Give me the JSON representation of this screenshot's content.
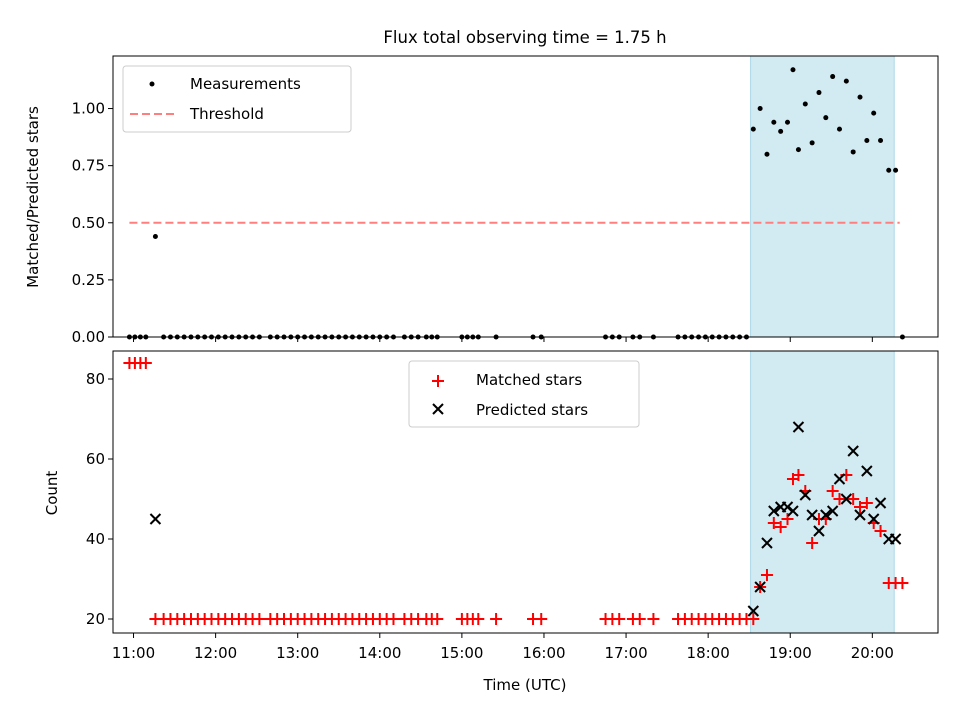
{
  "chart_data": {
    "title": "Flux total observing time = 1.75 h",
    "xlabel": "Time (UTC)",
    "x_ticks": [
      "11:00",
      "12:00",
      "13:00",
      "14:00",
      "15:00",
      "16:00",
      "17:00",
      "18:00",
      "19:00",
      "20:00"
    ],
    "x_range": [
      "10:45",
      "20:48"
    ],
    "highlight_span": {
      "start": "18:31",
      "end": "20:16",
      "color": "#add8e6"
    },
    "panels": [
      {
        "type": "scatter",
        "ylabel": "Matched/Predicted stars",
        "ylim": [
          0,
          1.23
        ],
        "y_ticks": [
          "0.00",
          "0.25",
          "0.50",
          "0.75",
          "1.00"
        ],
        "legend": {
          "placement": "top-left",
          "entries": [
            "Measurements",
            "Threshold"
          ]
        },
        "threshold": {
          "name": "Threshold",
          "y": 0.5,
          "x_start": "10:57",
          "x_end": "20:20",
          "color": "#ff7f7f",
          "style": "dashed"
        },
        "series": [
          {
            "name": "Measurements",
            "marker": "dot",
            "color": "#000000",
            "points": [
              [
                "10:57",
                0
              ],
              [
                "11:01",
                0
              ],
              [
                "11:05",
                0
              ],
              [
                "11:09",
                0
              ],
              [
                "11:16",
                0.44
              ],
              [
                "11:22",
                0
              ],
              [
                "11:27",
                0
              ],
              [
                "11:32",
                0
              ],
              [
                "11:37",
                0
              ],
              [
                "11:42",
                0
              ],
              [
                "11:47",
                0
              ],
              [
                "11:52",
                0
              ],
              [
                "11:57",
                0
              ],
              [
                "12:02",
                0
              ],
              [
                "12:07",
                0
              ],
              [
                "12:12",
                0
              ],
              [
                "12:17",
                0
              ],
              [
                "12:22",
                0
              ],
              [
                "12:27",
                0
              ],
              [
                "12:32",
                0
              ],
              [
                "12:40",
                0
              ],
              [
                "12:45",
                0
              ],
              [
                "12:50",
                0
              ],
              [
                "12:55",
                0
              ],
              [
                "13:00",
                0
              ],
              [
                "13:05",
                0
              ],
              [
                "13:10",
                0
              ],
              [
                "13:15",
                0
              ],
              [
                "13:20",
                0
              ],
              [
                "13:25",
                0
              ],
              [
                "13:30",
                0
              ],
              [
                "13:35",
                0
              ],
              [
                "13:40",
                0
              ],
              [
                "13:45",
                0
              ],
              [
                "13:50",
                0
              ],
              [
                "13:55",
                0
              ],
              [
                "14:00",
                0
              ],
              [
                "14:05",
                0
              ],
              [
                "14:10",
                0
              ],
              [
                "14:18",
                0
              ],
              [
                "14:23",
                0
              ],
              [
                "14:28",
                0
              ],
              [
                "14:34",
                0
              ],
              [
                "14:38",
                0
              ],
              [
                "14:42",
                0
              ],
              [
                "15:00",
                0
              ],
              [
                "15:04",
                0
              ],
              [
                "15:08",
                0
              ],
              [
                "15:12",
                0
              ],
              [
                "15:25",
                0
              ],
              [
                "15:52",
                0
              ],
              [
                "15:58",
                0
              ],
              [
                "16:45",
                0
              ],
              [
                "16:50",
                0
              ],
              [
                "16:55",
                0
              ],
              [
                "17:05",
                0
              ],
              [
                "17:10",
                0
              ],
              [
                "17:20",
                0
              ],
              [
                "17:38",
                0
              ],
              [
                "17:43",
                0
              ],
              [
                "17:48",
                0
              ],
              [
                "17:53",
                0
              ],
              [
                "17:58",
                0
              ],
              [
                "18:03",
                0
              ],
              [
                "18:08",
                0
              ],
              [
                "18:13",
                0
              ],
              [
                "18:18",
                0
              ],
              [
                "18:23",
                0
              ],
              [
                "18:28",
                0
              ],
              [
                "18:33",
                0.91
              ],
              [
                "18:38",
                1.0
              ],
              [
                "18:43",
                0.8
              ],
              [
                "18:48",
                0.94
              ],
              [
                "18:53",
                0.9
              ],
              [
                "18:58",
                0.94
              ],
              [
                "19:02",
                1.17
              ],
              [
                "19:06",
                0.82
              ],
              [
                "19:11",
                1.02
              ],
              [
                "19:16",
                0.85
              ],
              [
                "19:21",
                1.07
              ],
              [
                "19:26",
                0.96
              ],
              [
                "19:31",
                1.14
              ],
              [
                "19:36",
                0.91
              ],
              [
                "19:41",
                1.12
              ],
              [
                "19:46",
                0.81
              ],
              [
                "19:51",
                1.05
              ],
              [
                "19:56",
                0.86
              ],
              [
                "20:01",
                0.98
              ],
              [
                "20:06",
                0.86
              ],
              [
                "20:12",
                0.73
              ],
              [
                "20:17",
                0.73
              ],
              [
                "20:22",
                0
              ]
            ]
          }
        ]
      },
      {
        "type": "scatter",
        "ylabel": "Count",
        "ylim": [
          16.5,
          87
        ],
        "y_ticks": [
          "20",
          "40",
          "60",
          "80"
        ],
        "legend": {
          "placement": "top-center",
          "entries": [
            "Matched stars",
            "Predicted stars"
          ]
        },
        "series": [
          {
            "name": "Matched stars",
            "marker": "plus",
            "color": "#ff0000",
            "points": [
              [
                "10:57",
                84
              ],
              [
                "11:01",
                84
              ],
              [
                "11:05",
                84
              ],
              [
                "11:09",
                84
              ],
              [
                "11:16",
                20
              ],
              [
                "11:22",
                20
              ],
              [
                "11:27",
                20
              ],
              [
                "11:32",
                20
              ],
              [
                "11:37",
                20
              ],
              [
                "11:42",
                20
              ],
              [
                "11:47",
                20
              ],
              [
                "11:52",
                20
              ],
              [
                "11:57",
                20
              ],
              [
                "12:02",
                20
              ],
              [
                "12:07",
                20
              ],
              [
                "12:12",
                20
              ],
              [
                "12:17",
                20
              ],
              [
                "12:22",
                20
              ],
              [
                "12:27",
                20
              ],
              [
                "12:32",
                20
              ],
              [
                "12:40",
                20
              ],
              [
                "12:45",
                20
              ],
              [
                "12:50",
                20
              ],
              [
                "12:55",
                20
              ],
              [
                "13:00",
                20
              ],
              [
                "13:05",
                20
              ],
              [
                "13:10",
                20
              ],
              [
                "13:15",
                20
              ],
              [
                "13:20",
                20
              ],
              [
                "13:25",
                20
              ],
              [
                "13:30",
                20
              ],
              [
                "13:35",
                20
              ],
              [
                "13:40",
                20
              ],
              [
                "13:45",
                20
              ],
              [
                "13:50",
                20
              ],
              [
                "13:55",
                20
              ],
              [
                "14:00",
                20
              ],
              [
                "14:05",
                20
              ],
              [
                "14:10",
                20
              ],
              [
                "14:18",
                20
              ],
              [
                "14:23",
                20
              ],
              [
                "14:28",
                20
              ],
              [
                "14:34",
                20
              ],
              [
                "14:38",
                20
              ],
              [
                "14:42",
                20
              ],
              [
                "15:00",
                20
              ],
              [
                "15:04",
                20
              ],
              [
                "15:08",
                20
              ],
              [
                "15:12",
                20
              ],
              [
                "15:25",
                20
              ],
              [
                "15:52",
                20
              ],
              [
                "15:58",
                20
              ],
              [
                "16:45",
                20
              ],
              [
                "16:50",
                20
              ],
              [
                "16:55",
                20
              ],
              [
                "17:05",
                20
              ],
              [
                "17:10",
                20
              ],
              [
                "17:20",
                20
              ],
              [
                "17:38",
                20
              ],
              [
                "17:43",
                20
              ],
              [
                "17:48",
                20
              ],
              [
                "17:53",
                20
              ],
              [
                "17:58",
                20
              ],
              [
                "18:03",
                20
              ],
              [
                "18:08",
                20
              ],
              [
                "18:13",
                20
              ],
              [
                "18:18",
                20
              ],
              [
                "18:23",
                20
              ],
              [
                "18:28",
                20
              ],
              [
                "18:33",
                20
              ],
              [
                "18:38",
                28
              ],
              [
                "18:43",
                31
              ],
              [
                "18:48",
                44
              ],
              [
                "18:53",
                43
              ],
              [
                "18:58",
                45
              ],
              [
                "19:02",
                55
              ],
              [
                "19:06",
                56
              ],
              [
                "19:11",
                52
              ],
              [
                "19:16",
                39
              ],
              [
                "19:21",
                45
              ],
              [
                "19:26",
                45
              ],
              [
                "19:31",
                52
              ],
              [
                "19:36",
                50
              ],
              [
                "19:41",
                56
              ],
              [
                "19:46",
                50
              ],
              [
                "19:51",
                48
              ],
              [
                "19:56",
                49
              ],
              [
                "20:01",
                44
              ],
              [
                "20:06",
                42
              ],
              [
                "20:12",
                29
              ],
              [
                "20:17",
                29
              ],
              [
                "20:22",
                29
              ]
            ]
          },
          {
            "name": "Predicted stars",
            "marker": "x",
            "color": "#000000",
            "points": [
              [
                "11:16",
                45
              ],
              [
                "18:33",
                22
              ],
              [
                "18:38",
                28
              ],
              [
                "18:43",
                39
              ],
              [
                "18:48",
                47
              ],
              [
                "18:53",
                48
              ],
              [
                "18:58",
                48
              ],
              [
                "19:02",
                47
              ],
              [
                "19:06",
                68
              ],
              [
                "19:11",
                51
              ],
              [
                "19:16",
                46
              ],
              [
                "19:21",
                42
              ],
              [
                "19:26",
                46
              ],
              [
                "19:31",
                47
              ],
              [
                "19:36",
                55
              ],
              [
                "19:41",
                50
              ],
              [
                "19:46",
                62
              ],
              [
                "19:51",
                46
              ],
              [
                "19:56",
                57
              ],
              [
                "20:01",
                45
              ],
              [
                "20:06",
                49
              ],
              [
                "20:12",
                40
              ],
              [
                "20:17",
                40
              ]
            ]
          }
        ]
      }
    ]
  }
}
